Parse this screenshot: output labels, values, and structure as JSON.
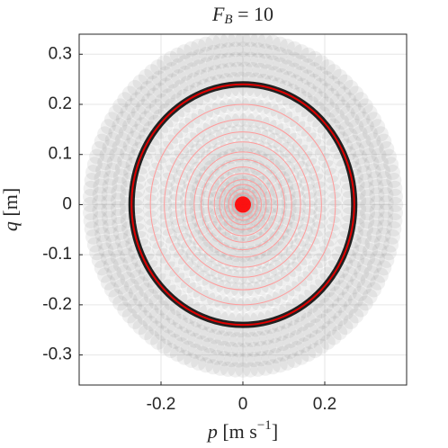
{
  "chart_data": {
    "type": "orbit",
    "title": {
      "symbol": "F",
      "subscript": "B",
      "rest": " = 10"
    },
    "xlabel": {
      "symbol": "p",
      "unit": " [m s",
      "exponent": "−1",
      "close": "]"
    },
    "ylabel": {
      "symbol": "q",
      "unit": " [m]"
    },
    "xlim": [
      -0.4,
      0.4
    ],
    "ylim": [
      -0.36,
      0.34
    ],
    "xticks": [
      -0.2,
      0,
      0.2
    ],
    "yticks": [
      -0.3,
      -0.2,
      -0.1,
      0,
      0.1,
      0.2,
      0.3
    ],
    "grid": true,
    "orbit": {
      "p_amplitude": 0.272,
      "q_amplitude": 0.24,
      "color": "#e00000"
    },
    "rings": {
      "color": "#ff9a9a",
      "p_amplitudes": [
        0.226,
        0.192,
        0.164,
        0.141,
        0.119,
        0.102,
        0.085,
        0.07,
        0.057,
        0.045,
        0.035,
        0.026,
        0.018,
        0.011,
        0.006
      ],
      "q_amplitudes": [
        0.2,
        0.17,
        0.145,
        0.125,
        0.105,
        0.09,
        0.075,
        0.062,
        0.05,
        0.04,
        0.031,
        0.023,
        0.016,
        0.01,
        0.005
      ]
    },
    "dots": {
      "color": "#808080",
      "p_amplitudes": [
        0.373,
        0.35,
        0.328,
        0.305,
        0.283,
        0.26,
        0.226,
        0.192,
        0.164,
        0.136,
        0.113,
        0.09,
        0.068,
        0.051,
        0.034,
        0.023,
        0.011
      ],
      "q_amplitudes": [
        0.33,
        0.31,
        0.29,
        0.27,
        0.25,
        0.23,
        0.2,
        0.17,
        0.145,
        0.12,
        0.1,
        0.08,
        0.06,
        0.045,
        0.03,
        0.02,
        0.01
      ]
    },
    "center": {
      "p": 0,
      "q": 0,
      "color": "#ff0000"
    }
  }
}
